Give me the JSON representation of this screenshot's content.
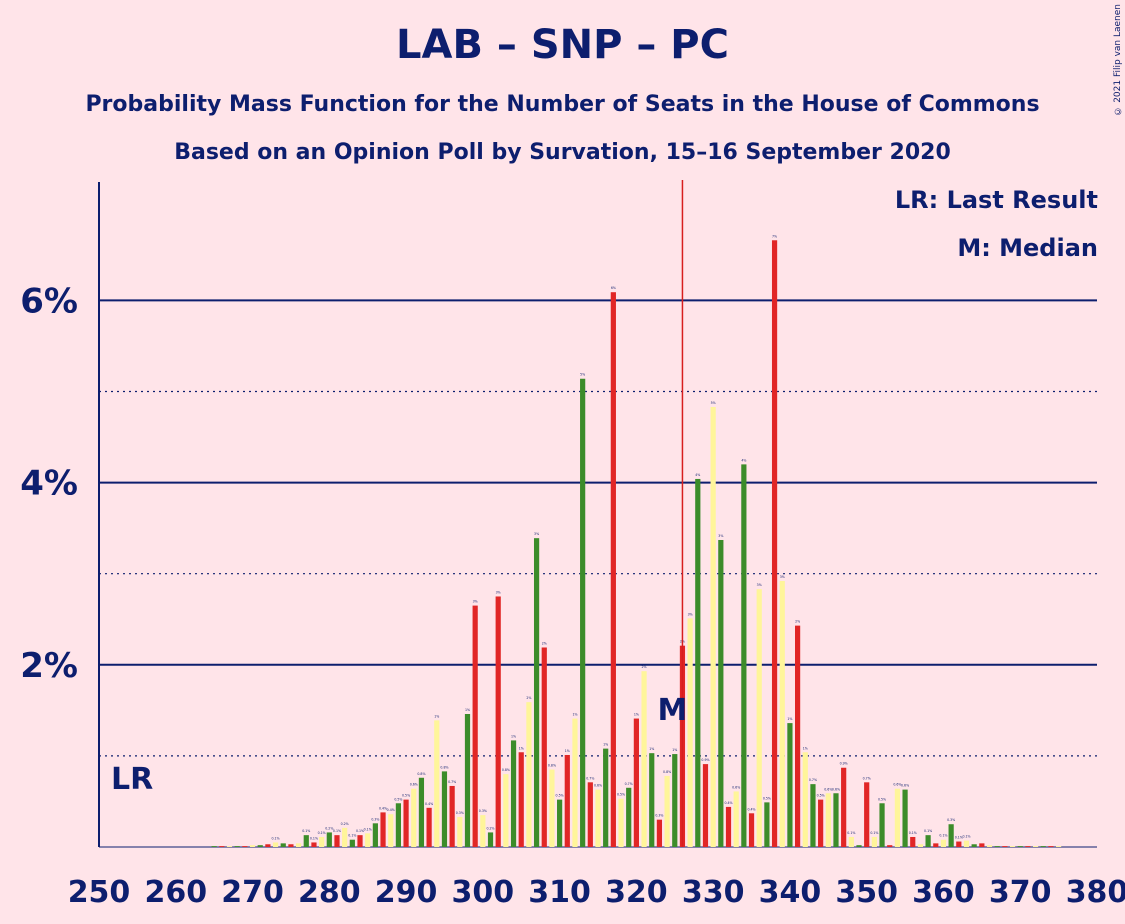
{
  "title": "LAB – SNP – PC",
  "subtitle": "Probability Mass Function for the Number of Seats in the House of Commons",
  "subtitle2": "Based on an Opinion Poll by Survation, 15–16 September 2020",
  "copyright": "© 2021 Filip van Laenen",
  "legend": {
    "lr": "LR: Last Result",
    "median": "M: Median"
  },
  "markers": {
    "lr_label": "LR",
    "median_label": "M"
  },
  "colors": {
    "background": "#ffe4e9",
    "axis": "#0d1e6e",
    "green": "#3c8c2a",
    "red": "#e12626",
    "yellow": "#fff59a",
    "median_line": "#d71e1e"
  },
  "chart_data": {
    "type": "bar",
    "title": "LAB – SNP – PC",
    "xlabel": "",
    "ylabel": "",
    "xlim": [
      250,
      380
    ],
    "ylim": [
      0,
      7
    ],
    "x_ticks": [
      250,
      260,
      270,
      280,
      290,
      300,
      310,
      320,
      330,
      340,
      350,
      360,
      370,
      380
    ],
    "y_ticks": [
      {
        "value": 2,
        "label": "2%"
      },
      {
        "value": 4,
        "label": "4%"
      },
      {
        "value": 6,
        "label": "6%"
      }
    ],
    "last_result": 250,
    "median": 326,
    "x": [
      250,
      251,
      252,
      253,
      254,
      255,
      256,
      257,
      258,
      259,
      260,
      261,
      262,
      263,
      264,
      265,
      266,
      267,
      268,
      269,
      270,
      271,
      272,
      273,
      274,
      275,
      276,
      277,
      278,
      279,
      280,
      281,
      282,
      283,
      284,
      285,
      286,
      287,
      288,
      289,
      290,
      291,
      292,
      293,
      294,
      295,
      296,
      297,
      298,
      299,
      300,
      301,
      302,
      303,
      304,
      305,
      306,
      307,
      308,
      309,
      310,
      311,
      312,
      313,
      314,
      315,
      316,
      317,
      318,
      319,
      320,
      321,
      322,
      323,
      324,
      325,
      326,
      327,
      328,
      329,
      330,
      331,
      332,
      333,
      334,
      335,
      336,
      337,
      338,
      339,
      340,
      341,
      342,
      343,
      344,
      345,
      346,
      347,
      348,
      349,
      350,
      351,
      352,
      353,
      354,
      355,
      356,
      357,
      358,
      359,
      360,
      361,
      362,
      363,
      364,
      365,
      366,
      367,
      368,
      369,
      370,
      371,
      372,
      373,
      374,
      375,
      376,
      377,
      378,
      379,
      380
    ],
    "values": [
      0,
      0,
      0,
      0,
      0,
      0,
      0,
      0,
      0,
      0,
      0,
      0,
      0,
      0,
      0,
      0.01,
      0.01,
      0.01,
      0.01,
      0.01,
      0.02,
      0.02,
      0.03,
      0.05,
      0.04,
      0.03,
      0.04,
      0.13,
      0.05,
      0.11,
      0.16,
      0.13,
      0.21,
      0.08,
      0.13,
      0.15,
      0.26,
      0.38,
      0.36,
      0.48,
      0.52,
      0.64,
      0.76,
      0.43,
      1.39,
      0.83,
      0.67,
      0.33,
      1.46,
      2.65,
      0.35,
      0.16,
      2.75,
      0.8,
      1.17,
      1.04,
      1.59,
      3.39,
      2.19,
      0.85,
      0.52,
      1.01,
      1.41,
      5.14,
      0.71,
      0.63,
      1.08,
      6.09,
      0.53,
      0.65,
      1.41,
      1.93,
      1.03,
      0.3,
      0.78,
      1.02,
      2.21,
      2.51,
      4.04,
      0.91,
      4.83,
      3.37,
      0.44,
      0.61,
      4.2,
      0.37,
      2.83,
      0.49,
      6.66,
      2.92,
      1.36,
      2.43,
      1.04,
      0.69,
      0.52,
      0.59,
      0.59,
      0.87,
      0.11,
      0.02,
      0.71,
      0.11,
      0.48,
      0.02,
      0.64,
      0.63,
      0.11,
      0.03,
      0.13,
      0.04,
      0.08,
      0.25,
      0.06,
      0.07,
      0.03,
      0.04,
      0.02,
      0.01,
      0.01,
      0.01,
      0.01,
      0.01,
      0.01,
      0.01,
      0.01,
      0.01,
      0,
      0,
      0,
      0,
      0
    ]
  }
}
